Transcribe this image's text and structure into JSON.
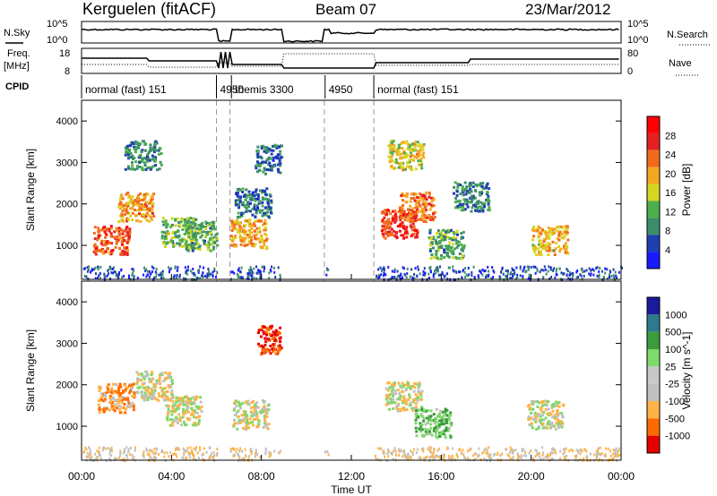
{
  "header": {
    "station": "Kerguelen (fitACF)",
    "beam": "Beam 07",
    "date": "23/Mar/2012"
  },
  "noise_panel": {
    "left_label": "N.Sky",
    "right_label": "N.Search",
    "left_ticks": [
      "10^5",
      "10^0"
    ],
    "right_ticks": [
      "10^5",
      "10^0"
    ]
  },
  "freq_panel": {
    "left_label_line1": "Freq.",
    "left_label_line2": "[MHz]",
    "right_label": "Nave",
    "left_ticks": [
      "18",
      "8"
    ],
    "right_ticks": [
      "80",
      "0"
    ]
  },
  "cpid": {
    "label": "CPID",
    "segments": [
      {
        "text": "normal (fast) 151",
        "start": "00:00",
        "end": "06:00"
      },
      {
        "text": "4950",
        "start": "06:00",
        "end": "06:40"
      },
      {
        "text": "themis 3300",
        "start": "06:40",
        "end": "08:50"
      },
      {
        "text": "4950",
        "start": "10:50",
        "end": "13:00"
      },
      {
        "text": "normal (fast) 151",
        "start": "13:00",
        "end": "24:00"
      }
    ]
  },
  "x_axis": {
    "label": "Time UT",
    "ticks": [
      "00:00",
      "04:00",
      "08:00",
      "12:00",
      "16:00",
      "20:00",
      "00:00"
    ]
  },
  "colors": {
    "power": [
      "#1a1aff",
      "#1f3fb0",
      "#3c8e6a",
      "#4cae4c",
      "#d6d620",
      "#f5a623",
      "#f26b1d",
      "#e62020",
      "#ff0000"
    ],
    "velocity": [
      "#e60000",
      "#ff6a00",
      "#ffb347",
      "#c0c0c0",
      "#c8c8c8",
      "#7fd96b",
      "#3a9c3a",
      "#2d7a8c",
      "#1a1a9c"
    ]
  },
  "chart_data": [
    {
      "type": "heatmap",
      "title": "",
      "xlabel": "Time UT",
      "ylabel": "Slant Range [km]",
      "xlim": [
        0,
        24
      ],
      "ylim": [
        180,
        4500
      ],
      "yticks": [
        "1000",
        "2000",
        "3000",
        "4000"
      ],
      "colorbar": {
        "label": "Power [dB]",
        "ticks": [
          "28",
          "24",
          "20",
          "16",
          "12",
          "8",
          "4"
        ],
        "range": [
          0,
          30
        ]
      },
      "scan_gaps": [
        [
          6.0,
          6.6
        ],
        [
          8.85,
          10.8
        ],
        [
          10.95,
          13.0
        ]
      ],
      "blobs": [
        {
          "t": 1.3,
          "r": 1150,
          "level": 24
        },
        {
          "t": 2.4,
          "r": 1950,
          "level": 20
        },
        {
          "t": 2.7,
          "r": 3200,
          "level": 8
        },
        {
          "t": 4.3,
          "r": 1350,
          "level": 12
        },
        {
          "t": 5.4,
          "r": 1250,
          "level": 10
        },
        {
          "t": 7.4,
          "r": 1300,
          "level": 18
        },
        {
          "t": 7.6,
          "r": 2050,
          "level": 6
        },
        {
          "t": 8.5,
          "r": 3100,
          "level": 6
        },
        {
          "t": 14.1,
          "r": 1550,
          "level": 26
        },
        {
          "t": 14.9,
          "r": 1950,
          "level": 22
        },
        {
          "t": 14.4,
          "r": 3200,
          "level": 16
        },
        {
          "t": 16.2,
          "r": 1050,
          "level": 10
        },
        {
          "t": 17.3,
          "r": 2200,
          "level": 8
        },
        {
          "t": 20.8,
          "r": 1150,
          "level": 18
        }
      ]
    },
    {
      "type": "heatmap",
      "title": "",
      "xlabel": "Time UT",
      "ylabel": "Slant Range [km]",
      "xlim": [
        0,
        24
      ],
      "ylim": [
        180,
        4500
      ],
      "yticks": [
        "1000",
        "2000",
        "3000",
        "4000"
      ],
      "colorbar": {
        "label": "Velocity [m s^-1]",
        "ticks": [
          "1000",
          "500",
          "100",
          "25",
          "-25",
          "-100",
          "-500",
          "-1000"
        ],
        "range": [
          -1000,
          1000
        ]
      },
      "blobs": [
        {
          "t": 1.5,
          "r": 1700,
          "velocity": -100
        },
        {
          "t": 3.2,
          "r": 2000,
          "velocity": 0
        },
        {
          "t": 4.5,
          "r": 1400,
          "velocity": 0
        },
        {
          "t": 7.5,
          "r": 1300,
          "velocity": 0
        },
        {
          "t": 8.6,
          "r": 3100,
          "velocity": -500
        },
        {
          "t": 14.3,
          "r": 1750,
          "velocity": 0
        },
        {
          "t": 15.6,
          "r": 1100,
          "velocity": 100
        },
        {
          "t": 20.6,
          "r": 1300,
          "velocity": 0
        }
      ]
    }
  ]
}
